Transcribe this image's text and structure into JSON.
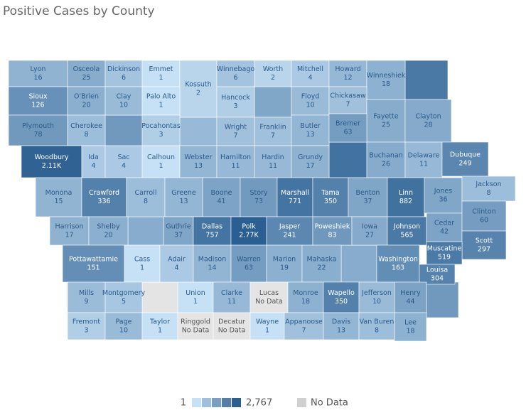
{
  "title": "Positive Cases by County",
  "counties": [
    {
      "name": "Lyon",
      "value": 16
    },
    {
      "name": "Osceola",
      "value": 25
    },
    {
      "name": "Dickinson",
      "value": 6
    },
    {
      "name": "Emmet",
      "value": 1
    },
    {
      "name": "Kossuth",
      "value": 2
    },
    {
      "name": "Winnebago",
      "value": 6
    },
    {
      "name": "Worth",
      "value": 2
    },
    {
      "name": "Mitchell",
      "value": 4
    },
    {
      "name": "Howard",
      "value": 12
    },
    {
      "name": "Winneshiek",
      "value": 18
    },
    {
      "name": "Sioux",
      "value": 126
    },
    {
      "name": "O'Brien",
      "value": 20
    },
    {
      "name": "Clay",
      "value": 10
    },
    {
      "name": "Palo Alto",
      "value": 1
    },
    {
      "name": "Hancock",
      "value": 3
    },
    {
      "name": "Floyd",
      "value": 10
    },
    {
      "name": "Chickasaw",
      "value": 7
    },
    {
      "name": "Fayette",
      "value": 25
    },
    {
      "name": "Clayton",
      "value": 28
    },
    {
      "name": "Plymouth",
      "value": 78
    },
    {
      "name": "Cherokee",
      "value": 8
    },
    {
      "name": "Pocahontas",
      "value": 3
    },
    {
      "name": "Wright",
      "value": 7
    },
    {
      "name": "Franklin",
      "value": 7
    },
    {
      "name": "Butler",
      "value": 13
    },
    {
      "name": "Bremer",
      "value": 63
    },
    {
      "name": "Woodbury",
      "value": 2110,
      "label": "2.11K"
    },
    {
      "name": "Ida",
      "value": 4
    },
    {
      "name": "Sac",
      "value": 4
    },
    {
      "name": "Calhoun",
      "value": 1
    },
    {
      "name": "Webster",
      "value": 13
    },
    {
      "name": "Hamilton",
      "value": 11
    },
    {
      "name": "Hardin",
      "value": 11
    },
    {
      "name": "Grundy",
      "value": 17
    },
    {
      "name": "Buchanan",
      "value": 26
    },
    {
      "name": "Delaware",
      "value": 11
    },
    {
      "name": "Dubuque",
      "value": 249
    },
    {
      "name": "Monona",
      "value": 15
    },
    {
      "name": "Crawford",
      "value": 336
    },
    {
      "name": "Carroll",
      "value": 8
    },
    {
      "name": "Greene",
      "value": 13
    },
    {
      "name": "Boone",
      "value": 41
    },
    {
      "name": "Story",
      "value": 73
    },
    {
      "name": "Marshall",
      "value": 771
    },
    {
      "name": "Tama",
      "value": 350
    },
    {
      "name": "Benton",
      "value": 37
    },
    {
      "name": "Linn",
      "value": 882
    },
    {
      "name": "Jones",
      "value": 36
    },
    {
      "name": "Jackson",
      "value": 8
    },
    {
      "name": "Harrison",
      "value": 17
    },
    {
      "name": "Shelby",
      "value": 20
    },
    {
      "name": "Guthrie",
      "value": 37
    },
    {
      "name": "Dallas",
      "value": 757
    },
    {
      "name": "Polk",
      "value": 2767,
      "label": "2.77K"
    },
    {
      "name": "Jasper",
      "value": 241
    },
    {
      "name": "Poweshiek",
      "value": 83
    },
    {
      "name": "Iowa",
      "value": 27
    },
    {
      "name": "Johnson",
      "value": 565
    },
    {
      "name": "Cedar",
      "value": 42
    },
    {
      "name": "Clinton",
      "value": 60
    },
    {
      "name": "Scott",
      "value": 297
    },
    {
      "name": "Pottawattamie",
      "value": 151
    },
    {
      "name": "Cass",
      "value": 1
    },
    {
      "name": "Adair",
      "value": 4
    },
    {
      "name": "Madison",
      "value": 14
    },
    {
      "name": "Warren",
      "value": 63
    },
    {
      "name": "Marion",
      "value": 19
    },
    {
      "name": "Mahaska",
      "value": 22
    },
    {
      "name": "Washington",
      "value": 163
    },
    {
      "name": "Muscatine",
      "value": 519
    },
    {
      "name": "Louisa",
      "value": 304
    },
    {
      "name": "Mills",
      "value": 9
    },
    {
      "name": "Montgomery",
      "value": 5
    },
    {
      "name": "Union",
      "value": 1
    },
    {
      "name": "Clarke",
      "value": 11
    },
    {
      "name": "Lucas",
      "value": null,
      "label": "No Data"
    },
    {
      "name": "Monroe",
      "value": 18
    },
    {
      "name": "Wapello",
      "value": 350
    },
    {
      "name": "Jefferson",
      "value": 10
    },
    {
      "name": "Henry",
      "value": 44
    },
    {
      "name": "Fremont",
      "value": 3
    },
    {
      "name": "Page",
      "value": 10
    },
    {
      "name": "Taylor",
      "value": 1
    },
    {
      "name": "Ringgold",
      "value": null,
      "label": "No Data"
    },
    {
      "name": "Decatur",
      "value": null,
      "label": "No Data"
    },
    {
      "name": "Wayne",
      "value": 1
    },
    {
      "name": "Appanoose",
      "value": 7
    },
    {
      "name": "Davis",
      "value": 13
    },
    {
      "name": "Van Buren",
      "value": 8
    },
    {
      "name": "Lee",
      "value": 18
    }
  ],
  "legend": {
    "min": 1,
    "max": {
      "value": 2767,
      "label": "2,767"
    },
    "no_data": "No Data"
  }
}
